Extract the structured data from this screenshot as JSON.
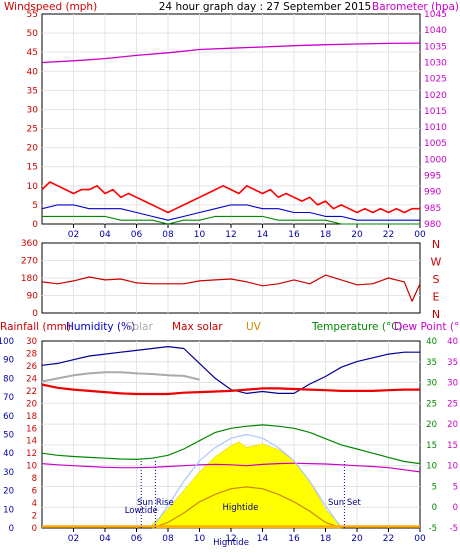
{
  "title": "24 hour graph day : 27 September 2015",
  "colors": {
    "wind_red": "#ff0000",
    "wind_blue": "#0000cc",
    "wind_green": "#008800",
    "barometer": "#cc00cc",
    "direction": "#cc0000",
    "rain": "#0000cc",
    "humidity": "#000099",
    "solar_yellow": "#ffff00",
    "solar_maxcurve": "#aac8ff",
    "uv": "#cc8800",
    "temperature": "#008800",
    "dewpoint": "#cc00cc",
    "grey_line": "#aaaaaa",
    "red_line": "#ee0000",
    "axis_blue": "#0000aa",
    "axis_red": "#cc0000",
    "axis_green": "#006600",
    "axis_magenta": "#cc00cc"
  },
  "chart_data": [
    {
      "type": "line",
      "panel": "wind",
      "title": "24 hour graph day : 27 September 2015",
      "ylabel": "Windspeed (mph)",
      "y2label": "Barometer (hpa)",
      "ylim": [
        0,
        55
      ],
      "y_ticks": [
        0,
        5,
        10,
        15,
        20,
        25,
        30,
        35,
        40,
        45,
        50,
        55
      ],
      "y2lim": [
        980,
        1045
      ],
      "y2_ticks": [
        980,
        985,
        990,
        995,
        1000,
        1005,
        1010,
        1015,
        1020,
        1025,
        1030,
        1035,
        1040,
        1045
      ],
      "x_ticks": [
        "02",
        "04",
        "06",
        "08",
        "10",
        "12",
        "14",
        "16",
        "18",
        "20",
        "22",
        "00"
      ],
      "series": [
        {
          "role": "gust",
          "color": "#ff0000",
          "x": [
            0,
            0.5,
            1,
            1.5,
            2,
            2.5,
            3,
            3.5,
            4,
            4.5,
            5,
            5.5,
            6,
            6.5,
            7,
            7.5,
            8,
            8.5,
            9,
            9.5,
            10,
            10.5,
            11,
            11.5,
            12,
            12.5,
            13,
            13.5,
            14,
            14.5,
            15,
            15.5,
            16,
            16.5,
            17,
            17.5,
            18,
            18.5,
            19,
            19.5,
            20,
            20.5,
            21,
            21.5,
            22,
            22.5,
            23,
            23.5,
            24
          ],
          "values": [
            9,
            11,
            10,
            9,
            8,
            9,
            9,
            10,
            8,
            9,
            7,
            8,
            7,
            6,
            5,
            4,
            3,
            4,
            5,
            6,
            7,
            8,
            9,
            10,
            9,
            8,
            10,
            9,
            8,
            9,
            7,
            8,
            7,
            6,
            7,
            5,
            6,
            4,
            5,
            4,
            3,
            4,
            3,
            4,
            3,
            4,
            3,
            4,
            4
          ]
        },
        {
          "role": "average",
          "color": "#0000cc",
          "x": [
            0,
            1,
            2,
            3,
            4,
            5,
            6,
            7,
            8,
            9,
            10,
            11,
            12,
            13,
            14,
            15,
            16,
            17,
            18,
            19,
            20,
            21,
            22,
            23,
            24
          ],
          "values": [
            4,
            5,
            5,
            4,
            4,
            4,
            3,
            2,
            1,
            2,
            3,
            4,
            5,
            5,
            4,
            4,
            3,
            3,
            2,
            2,
            1,
            1,
            1,
            1,
            1
          ]
        },
        {
          "role": "speed",
          "color": "#008800",
          "x": [
            0,
            1,
            2,
            3,
            4,
            5,
            6,
            7,
            8,
            9,
            10,
            11,
            12,
            13,
            14,
            15,
            16,
            17,
            18,
            19,
            20,
            21,
            22,
            23,
            24
          ],
          "values": [
            2,
            2,
            2,
            2,
            2,
            1,
            1,
            1,
            0,
            1,
            1,
            2,
            2,
            2,
            2,
            1,
            1,
            1,
            1,
            0,
            0,
            0,
            0,
            0,
            0
          ]
        },
        {
          "role": "barometer",
          "axis": "y2",
          "color": "#cc00cc",
          "x": [
            0,
            2,
            4,
            6,
            8,
            10,
            12,
            14,
            16,
            18,
            20,
            22,
            24
          ],
          "values": [
            1030.0,
            1030.5,
            1031.2,
            1032.2,
            1033.0,
            1034.0,
            1034.4,
            1034.8,
            1035.2,
            1035.5,
            1035.7,
            1035.9,
            1036.0
          ]
        }
      ]
    },
    {
      "type": "line",
      "panel": "wind_direction",
      "ylim": [
        0,
        360
      ],
      "y_ticks": [
        0,
        90,
        180,
        270,
        360
      ],
      "y2_ticks": [
        "N",
        "W",
        "S",
        "E",
        "N"
      ],
      "series": [
        {
          "role": "direction",
          "color": "#cc0000",
          "x": [
            0,
            1,
            2,
            3,
            4,
            5,
            6,
            7,
            8,
            9,
            10,
            11,
            12,
            13,
            14,
            15,
            16,
            17,
            18,
            19,
            20,
            21,
            22,
            23,
            23.5,
            24
          ],
          "values": [
            160,
            150,
            165,
            185,
            170,
            175,
            155,
            150,
            150,
            150,
            165,
            170,
            175,
            160,
            140,
            150,
            170,
            150,
            195,
            170,
            145,
            150,
            180,
            160,
            60,
            150
          ]
        }
      ]
    },
    {
      "type": "line",
      "panel": "climate",
      "header_labels": {
        "rain": "Rainfall (mm)",
        "humidity": "Humidity (%)",
        "solar": "Solar",
        "max_solar": "Max solar",
        "uv": "UV",
        "temperature": "Temperature (°C)",
        "dewpoint": "Dew Point (°C)"
      },
      "y_left1_ticks": [
        0,
        10,
        20,
        30,
        40,
        50,
        60,
        70,
        80,
        90,
        100
      ],
      "y_left2_ticks": [
        0,
        2,
        4,
        6,
        8,
        10,
        12,
        14,
        16,
        18,
        20,
        22,
        24,
        26,
        28,
        30
      ],
      "y_right1_ticks": [
        -5,
        0,
        5,
        10,
        15,
        20,
        25,
        30,
        35,
        40
      ],
      "y_right2_ticks": [
        -5,
        0,
        5,
        10,
        15,
        20,
        25,
        30,
        35,
        40
      ],
      "x_ticks": [
        "02",
        "04",
        "06",
        "08",
        "10",
        "12",
        "14",
        "16",
        "18",
        "20",
        "22",
        "00"
      ],
      "annotations": [
        {
          "text": "Sun Rise",
          "hour": 7.2
        },
        {
          "text": "Lowtide",
          "hour": 6.3
        },
        {
          "text": "Sun Set",
          "hour": 19.2
        },
        {
          "text": "Hightide",
          "hour": 12.6
        },
        {
          "text": "Hightide",
          "hour": 12.0
        }
      ],
      "series": [
        {
          "role": "humidity",
          "axis": "left1",
          "color": "#000099",
          "x": [
            0,
            1,
            2,
            3,
            4,
            5,
            6,
            7,
            8,
            9,
            10,
            11,
            12,
            13,
            14,
            15,
            16,
            17,
            18,
            19,
            20,
            21,
            22,
            23,
            24
          ],
          "values": [
            87,
            88,
            90,
            92,
            93,
            94,
            95,
            96,
            97,
            96,
            88,
            80,
            74,
            72,
            73,
            72,
            72,
            77,
            81,
            86,
            89,
            91,
            93,
            94,
            94
          ]
        },
        {
          "role": "grey",
          "axis": "left2",
          "color": "#aaaaaa",
          "x": [
            0,
            1,
            2,
            3,
            4,
            5,
            6,
            7,
            8,
            9,
            10
          ],
          "values": [
            23.5,
            24,
            24.5,
            24.8,
            25,
            25,
            24.8,
            24.7,
            24.5,
            24.4,
            23.8
          ]
        },
        {
          "role": "red",
          "axis": "left2",
          "color": "#ee0000",
          "x": [
            0,
            1,
            2,
            3,
            4,
            5,
            6,
            7,
            8,
            9,
            10,
            11,
            12,
            13,
            14,
            15,
            16,
            17,
            18,
            19,
            20,
            21,
            22,
            23,
            24
          ],
          "values": [
            23,
            22.5,
            22.2,
            22,
            21.8,
            21.6,
            21.5,
            21.5,
            21.5,
            21.7,
            21.8,
            21.9,
            22,
            22.2,
            22.4,
            22.4,
            22.3,
            22.2,
            22.1,
            22,
            22,
            22,
            22.1,
            22.2,
            22.2
          ]
        },
        {
          "role": "temperature",
          "axis": "right1",
          "color": "#008800",
          "x": [
            0,
            1,
            2,
            3,
            4,
            5,
            6,
            7,
            8,
            9,
            10,
            11,
            12,
            13,
            14,
            15,
            16,
            17,
            18,
            19,
            20,
            21,
            22,
            23,
            24
          ],
          "values": [
            13,
            12.5,
            12.2,
            12,
            11.8,
            11.6,
            11.5,
            11.8,
            12.5,
            14,
            16,
            18,
            19,
            19.5,
            19.8,
            19.5,
            19,
            18,
            16.5,
            15,
            14,
            13,
            12,
            11,
            10.5
          ]
        },
        {
          "role": "dewpoint",
          "axis": "right1",
          "color": "#cc00cc",
          "x": [
            0,
            1,
            2,
            3,
            4,
            5,
            6,
            7,
            8,
            9,
            10,
            11,
            12,
            13,
            14,
            15,
            16,
            17,
            18,
            19,
            20,
            21,
            22,
            23,
            24
          ],
          "values": [
            10.5,
            10.2,
            10,
            9.8,
            9.6,
            9.5,
            9.5,
            9.6,
            9.8,
            10,
            10.2,
            10.3,
            10.2,
            10,
            10.3,
            10.5,
            10.6,
            10.5,
            10.4,
            10.2,
            10,
            9.8,
            9.5,
            9,
            8.5
          ]
        },
        {
          "role": "solar",
          "axis": "left1",
          "color": "#ffff00",
          "x": [
            7,
            8,
            9,
            10,
            11,
            12,
            12.5,
            13,
            13.5,
            14,
            15,
            16,
            17,
            18,
            19
          ],
          "values": [
            2,
            10,
            20,
            30,
            38,
            44,
            46,
            43,
            44,
            45,
            42,
            36,
            25,
            10,
            1
          ]
        },
        {
          "role": "max_solar",
          "axis": "left1",
          "color": "#aac8ff",
          "x": [
            7,
            8,
            9,
            10,
            11,
            12,
            13,
            14,
            15,
            16,
            17,
            18,
            19
          ],
          "values": [
            0,
            12,
            25,
            36,
            43,
            48,
            50,
            48,
            43,
            36,
            25,
            12,
            0
          ]
        },
        {
          "role": "uv",
          "axis": "left1",
          "color": "#cc8800",
          "x": [
            7,
            8,
            9,
            10,
            11,
            12,
            13,
            14,
            15,
            16,
            17,
            18,
            19
          ],
          "values": [
            0,
            3,
            8,
            14,
            18,
            21,
            22,
            21,
            18,
            14,
            9,
            3,
            0
          ]
        }
      ]
    }
  ]
}
